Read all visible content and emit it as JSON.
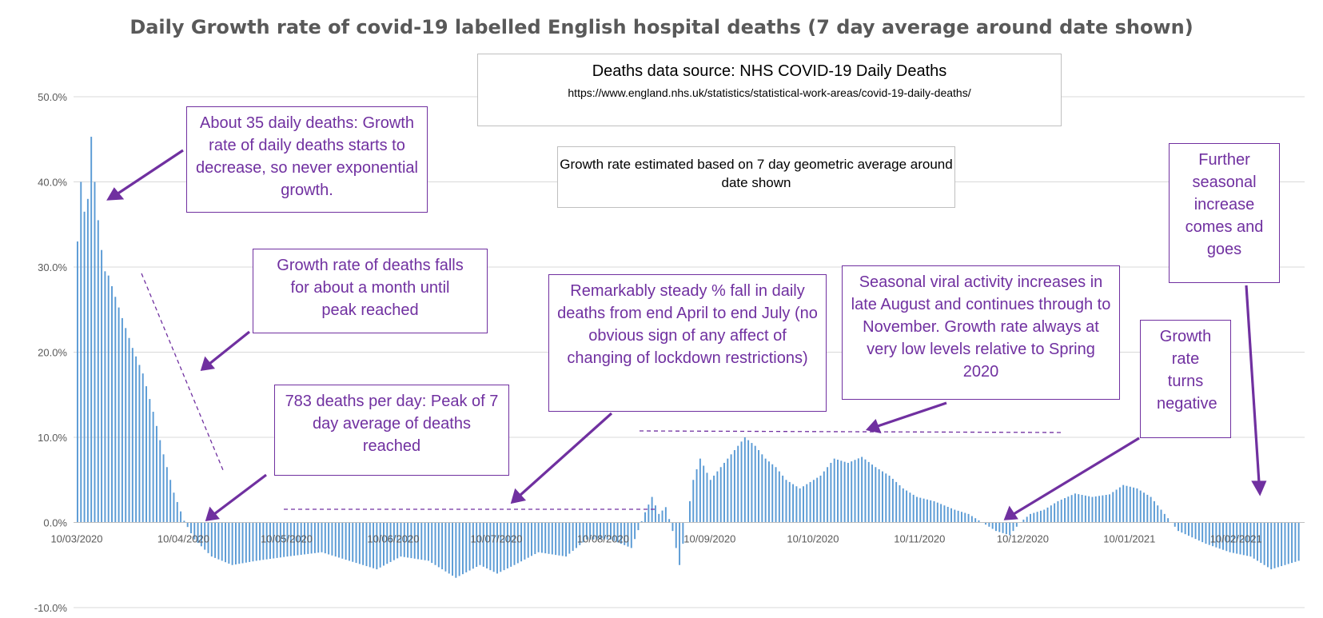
{
  "chart_data": {
    "type": "bar",
    "title": "Daily Growth rate of covid-19 labelled English hospital deaths (7 day average around date shown)",
    "xlabel": "",
    "ylabel": "",
    "ylim": [
      -0.1,
      0.5
    ],
    "y_ticks": [
      0.5,
      0.4,
      0.3,
      0.2,
      0.1,
      0.0,
      -0.1
    ],
    "y_tick_labels": [
      "50.0%",
      "40.0%",
      "30.0%",
      "20.0%",
      "10.0%",
      "0.0%",
      "-10.0%"
    ],
    "x_start": "2020-03-10",
    "x_end": "2021-02-28",
    "x_tick_labels": [
      "10/03/2020",
      "10/04/2020",
      "10/05/2020",
      "10/06/2020",
      "10/07/2020",
      "10/08/2020",
      "10/09/2020",
      "10/10/2020",
      "10/11/2020",
      "10/12/2020",
      "10/01/2021",
      "10/02/2021"
    ],
    "grid": "horizontal",
    "legend": "none",
    "bar_color": "#5b9bd5",
    "value_anchors": [
      [
        "2020-03-10",
        0.33
      ],
      [
        "2020-03-11",
        0.4
      ],
      [
        "2020-03-12",
        0.365
      ],
      [
        "2020-03-13",
        0.38
      ],
      [
        "2020-03-14",
        0.453
      ],
      [
        "2020-03-15",
        0.4
      ],
      [
        "2020-03-16",
        0.355
      ],
      [
        "2020-03-17",
        0.32
      ],
      [
        "2020-03-18",
        0.295
      ],
      [
        "2020-03-19",
        0.29
      ],
      [
        "2020-03-21",
        0.265
      ],
      [
        "2020-03-23",
        0.24
      ],
      [
        "2020-03-26",
        0.205
      ],
      [
        "2020-03-29",
        0.175
      ],
      [
        "2020-04-01",
        0.13
      ],
      [
        "2020-04-04",
        0.08
      ],
      [
        "2020-04-07",
        0.035
      ],
      [
        "2020-04-10",
        0.002
      ],
      [
        "2020-04-13",
        -0.02
      ],
      [
        "2020-04-18",
        -0.04
      ],
      [
        "2020-04-24",
        -0.05
      ],
      [
        "2020-05-01",
        -0.045
      ],
      [
        "2020-05-10",
        -0.04
      ],
      [
        "2020-05-20",
        -0.035
      ],
      [
        "2020-05-28",
        -0.045
      ],
      [
        "2020-06-05",
        -0.055
      ],
      [
        "2020-06-12",
        -0.04
      ],
      [
        "2020-06-20",
        -0.045
      ],
      [
        "2020-06-28",
        -0.065
      ],
      [
        "2020-07-05",
        -0.05
      ],
      [
        "2020-07-10",
        -0.06
      ],
      [
        "2020-07-15",
        -0.05
      ],
      [
        "2020-07-22",
        -0.035
      ],
      [
        "2020-07-30",
        -0.04
      ],
      [
        "2020-08-05",
        -0.02
      ],
      [
        "2020-08-12",
        -0.02
      ],
      [
        "2020-08-18",
        -0.03
      ],
      [
        "2020-08-22",
        0.012
      ],
      [
        "2020-08-24",
        0.03
      ],
      [
        "2020-08-26",
        0.01
      ],
      [
        "2020-08-28",
        0.018
      ],
      [
        "2020-08-30",
        -0.01
      ],
      [
        "2020-09-01",
        -0.05
      ],
      [
        "2020-09-03",
        0.0
      ],
      [
        "2020-09-05",
        0.05
      ],
      [
        "2020-09-07",
        0.075
      ],
      [
        "2020-09-10",
        0.05
      ],
      [
        "2020-09-13",
        0.065
      ],
      [
        "2020-09-16",
        0.08
      ],
      [
        "2020-09-18",
        0.09
      ],
      [
        "2020-09-20",
        0.1
      ],
      [
        "2020-09-23",
        0.09
      ],
      [
        "2020-09-26",
        0.075
      ],
      [
        "2020-09-29",
        0.065
      ],
      [
        "2020-10-02",
        0.05
      ],
      [
        "2020-10-06",
        0.04
      ],
      [
        "2020-10-08",
        0.045
      ],
      [
        "2020-10-12",
        0.055
      ],
      [
        "2020-10-16",
        0.075
      ],
      [
        "2020-10-20",
        0.07
      ],
      [
        "2020-10-24",
        0.077
      ],
      [
        "2020-10-28",
        0.065
      ],
      [
        "2020-11-01",
        0.055
      ],
      [
        "2020-11-05",
        0.04
      ],
      [
        "2020-11-09",
        0.03
      ],
      [
        "2020-11-14",
        0.025
      ],
      [
        "2020-11-20",
        0.015
      ],
      [
        "2020-11-24",
        0.01
      ],
      [
        "2020-11-28",
        0.0
      ],
      [
        "2020-12-02",
        -0.01
      ],
      [
        "2020-12-06",
        -0.015
      ],
      [
        "2020-12-09",
        0.0
      ],
      [
        "2020-12-12",
        0.01
      ],
      [
        "2020-12-16",
        0.015
      ],
      [
        "2020-12-20",
        0.025
      ],
      [
        "2020-12-25",
        0.034
      ],
      [
        "2020-12-30",
        0.03
      ],
      [
        "2021-01-04",
        0.033
      ],
      [
        "2021-01-08",
        0.044
      ],
      [
        "2021-01-12",
        0.04
      ],
      [
        "2021-01-16",
        0.03
      ],
      [
        "2021-01-20",
        0.01
      ],
      [
        "2021-01-22",
        0.0
      ],
      [
        "2021-01-24",
        -0.01
      ],
      [
        "2021-02-01",
        -0.025
      ],
      [
        "2021-02-08",
        -0.035
      ],
      [
        "2021-02-14",
        -0.04
      ],
      [
        "2021-02-20",
        -0.055
      ],
      [
        "2021-02-24",
        -0.05
      ],
      [
        "2021-02-28",
        -0.045
      ]
    ]
  },
  "annotations": {
    "source_title": "Deaths data source: NHS COVID-19 Daily Deaths",
    "source_url": "https://www.england.nhs.uk/statistics/statistical-work-areas/covid-19-daily-deaths/",
    "method_note": "Growth rate estimated based on 7 day geometric average around date shown",
    "early_growth": "About 35 daily deaths: Growth rate of daily deaths starts to decrease, so never exponential growth.",
    "falls_month": "Growth rate of deaths falls for about a month until peak reached",
    "peak": "783 deaths per day: Peak of 7 day average of deaths reached",
    "steady_fall": "Remarkably steady % fall in daily deaths from end April to end July (no obvious sign of any affect of changing of lockdown restrictions)",
    "seasonal": "Seasonal viral activity increases in late August and continues through to November. Growth rate always at very low levels relative to Spring 2020",
    "turns_negative": "Growth rate turns negative",
    "further_seasonal": "Further seasonal increase comes and goes"
  },
  "colors": {
    "annotation": "#7030a0",
    "title": "#595959",
    "grid": "#d9d9d9",
    "axis_text": "#595959"
  }
}
